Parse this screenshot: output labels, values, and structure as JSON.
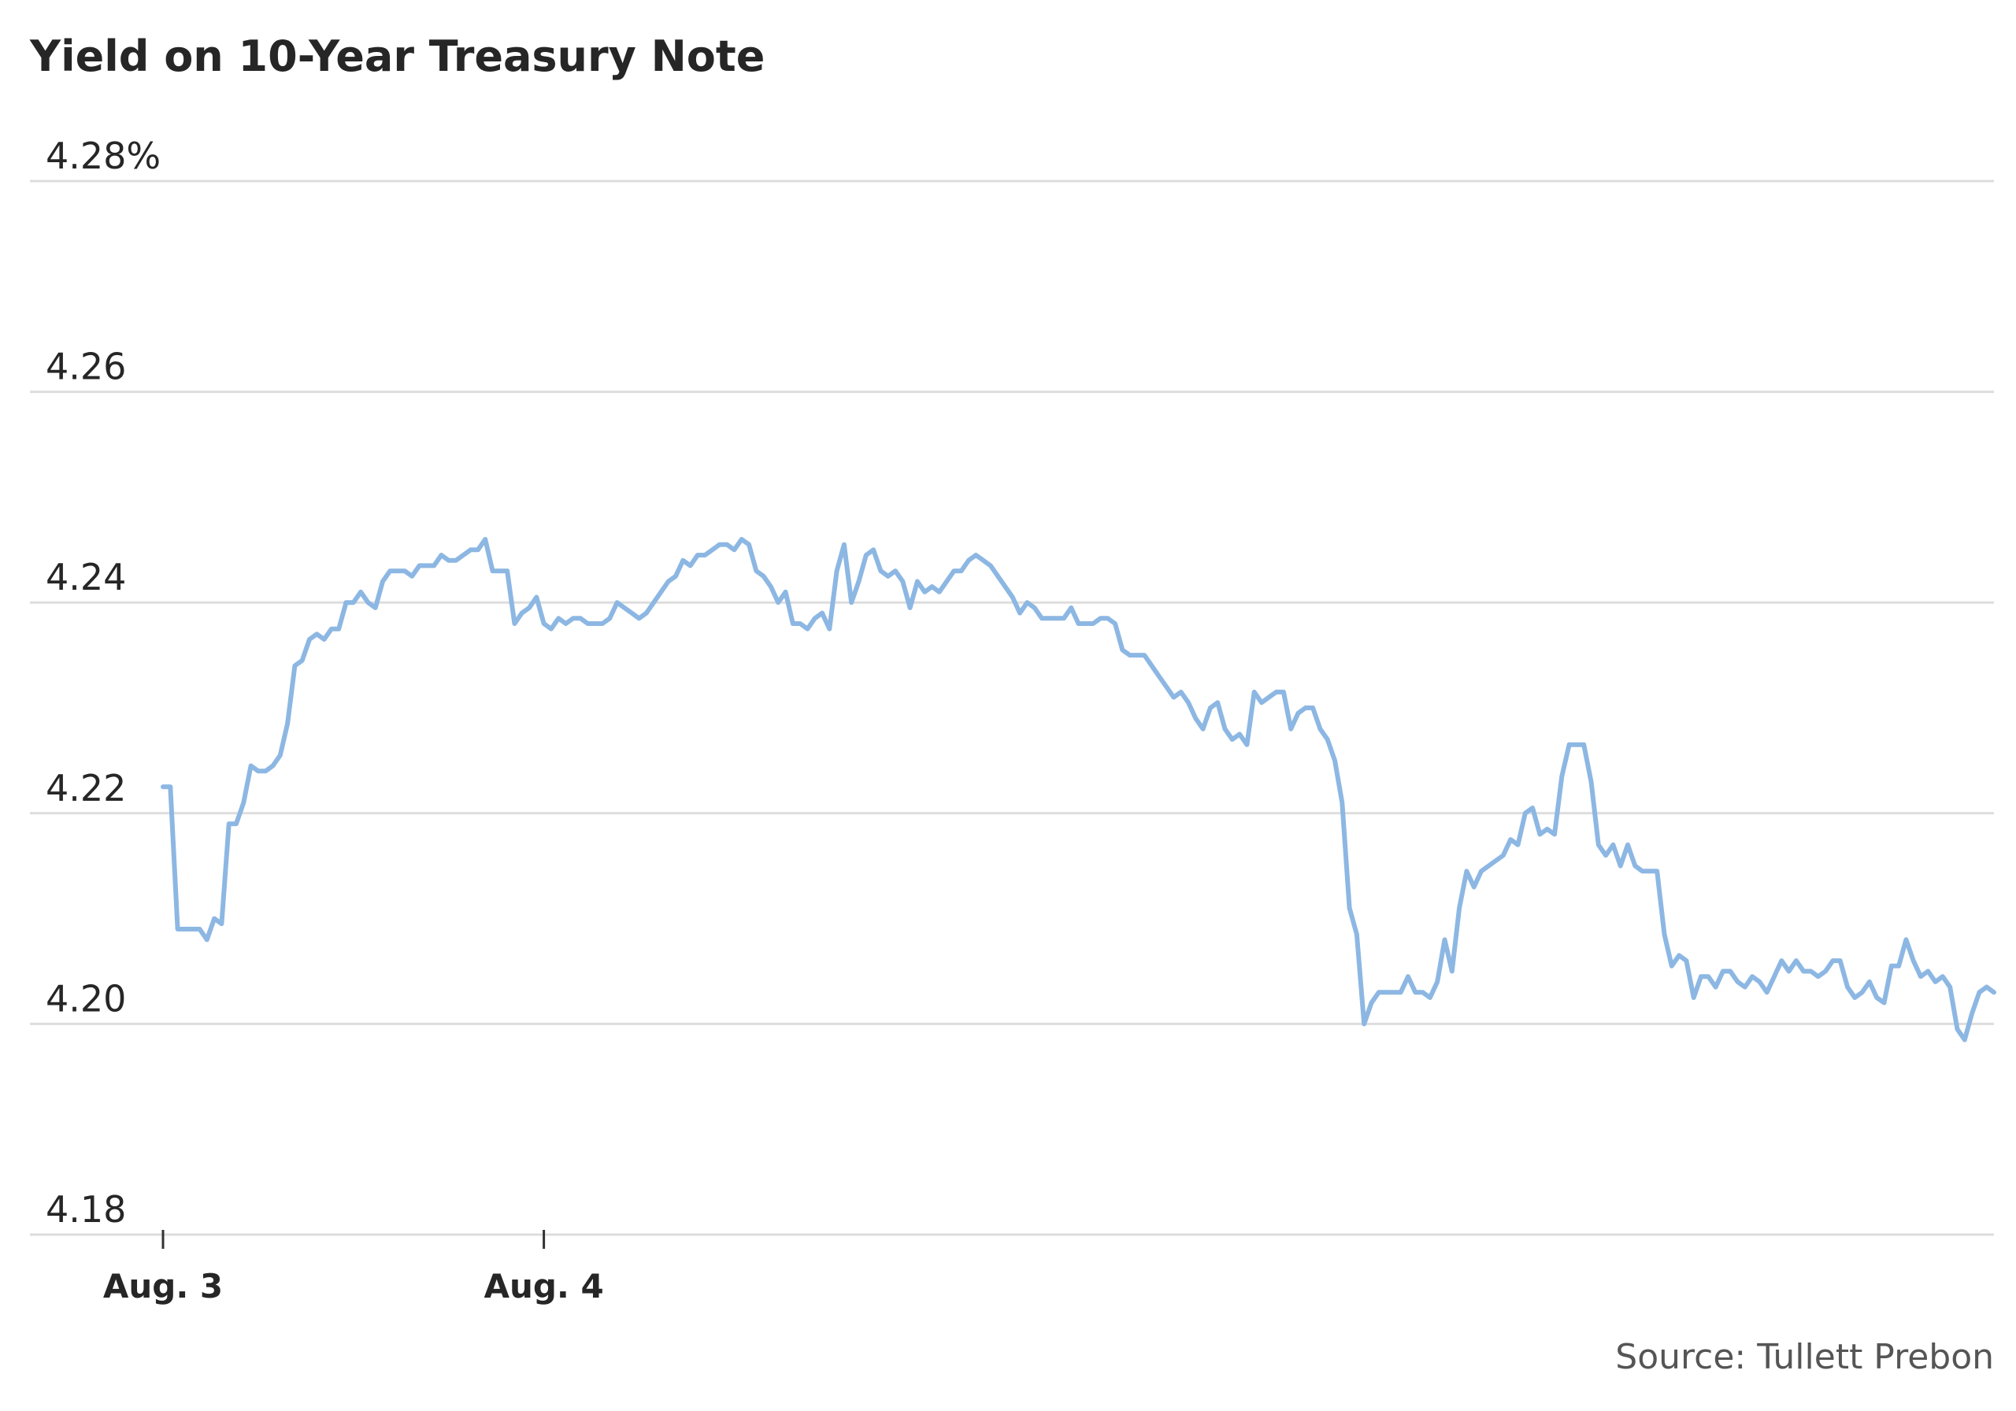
{
  "chart_data": {
    "type": "line",
    "title": "Yield on 10-Year Treasury Note",
    "source": "Source: Tullett Prebon",
    "xlabel": "",
    "ylabel": "",
    "ylim": [
      4.18,
      4.28
    ],
    "y_ticks": [
      {
        "value": 4.28,
        "label": "4.28%"
      },
      {
        "value": 4.26,
        "label": "4.26"
      },
      {
        "value": 4.24,
        "label": "4.24"
      },
      {
        "value": 4.22,
        "label": "4.22"
      },
      {
        "value": 4.2,
        "label": "4.20"
      },
      {
        "value": 4.18,
        "label": "4.18"
      }
    ],
    "x_ticks": [
      {
        "index": 0,
        "label": "Aug. 3"
      },
      {
        "index": 52,
        "label": "Aug. 4"
      }
    ],
    "grid": true,
    "legend": "none",
    "colors": {
      "line": "#8db7e3",
      "grid": "#dddddd",
      "text": "#262626",
      "source": "#555555",
      "axis": "#333333"
    },
    "series": [
      {
        "values": [
          4.2225,
          4.2225,
          4.209,
          4.209,
          4.209,
          4.209,
          4.208,
          4.21,
          4.2095,
          4.219,
          4.219,
          4.221,
          4.2245,
          4.224,
          4.224,
          4.2245,
          4.2255,
          4.2285,
          4.234,
          4.2345,
          4.2365,
          4.237,
          4.2365,
          4.2375,
          4.2375,
          4.24,
          4.24,
          4.241,
          4.24,
          4.2395,
          4.242,
          4.243,
          4.243,
          4.243,
          4.2425,
          4.2435,
          4.2435,
          4.2435,
          4.2445,
          4.244,
          4.244,
          4.2445,
          4.245,
          4.245,
          4.246,
          4.243,
          4.243,
          4.243,
          4.238,
          4.239,
          4.2395,
          4.2405,
          4.238,
          4.2375,
          4.2385,
          4.238,
          4.2385,
          4.2385,
          4.238,
          4.238,
          4.238,
          4.2385,
          4.24,
          4.2395,
          4.239,
          4.2385,
          4.239,
          4.24,
          4.241,
          4.242,
          4.2425,
          4.244,
          4.2435,
          4.2445,
          4.2445,
          4.245,
          4.2455,
          4.2455,
          4.245,
          4.246,
          4.2455,
          4.243,
          4.2425,
          4.2415,
          4.24,
          4.241,
          4.238,
          4.238,
          4.2375,
          4.2385,
          4.239,
          4.2375,
          4.243,
          4.2455,
          4.24,
          4.242,
          4.2445,
          4.245,
          4.243,
          4.2425,
          4.243,
          4.242,
          4.2395,
          4.242,
          4.241,
          4.2415,
          4.241,
          4.242,
          4.243,
          4.243,
          4.244,
          4.2445,
          4.244,
          4.2435,
          4.2425,
          4.2415,
          4.2405,
          4.239,
          4.24,
          4.2395,
          4.2385,
          4.2385,
          4.2385,
          4.2385,
          4.2395,
          4.238,
          4.238,
          4.238,
          4.2385,
          4.2385,
          4.238,
          4.2355,
          4.235,
          4.235,
          4.235,
          4.234,
          4.233,
          4.232,
          4.231,
          4.2315,
          4.2305,
          4.229,
          4.228,
          4.23,
          4.2305,
          4.228,
          4.227,
          4.2275,
          4.2265,
          4.2315,
          4.2305,
          4.231,
          4.2315,
          4.2315,
          4.228,
          4.2295,
          4.23,
          4.23,
          4.228,
          4.227,
          4.225,
          4.221,
          4.211,
          4.2085,
          4.2,
          4.202,
          4.203,
          4.203,
          4.203,
          4.203,
          4.2045,
          4.203,
          4.203,
          4.2025,
          4.204,
          4.208,
          4.205,
          4.211,
          4.2145,
          4.213,
          4.2145,
          4.215,
          4.2155,
          4.216,
          4.2175,
          4.217,
          4.22,
          4.2205,
          4.218,
          4.2185,
          4.218,
          4.2235,
          4.2265,
          4.2265,
          4.2265,
          4.223,
          4.217,
          4.216,
          4.217,
          4.215,
          4.217,
          4.215,
          4.2145,
          4.2145,
          4.2145,
          4.2085,
          4.2055,
          4.2065,
          4.206,
          4.2025,
          4.2045,
          4.2045,
          4.2035,
          4.205,
          4.205,
          4.204,
          4.2035,
          4.2045,
          4.204,
          4.203,
          4.2045,
          4.206,
          4.205,
          4.206,
          4.205,
          4.205,
          4.2045,
          4.205,
          4.206,
          4.206,
          4.2035,
          4.2025,
          4.203,
          4.204,
          4.2025,
          4.202,
          4.2055,
          4.2055,
          4.208,
          4.206,
          4.2045,
          4.205,
          4.204,
          4.2045,
          4.2035,
          4.1995,
          4.1985,
          4.201,
          4.203,
          4.2035,
          4.203
        ]
      }
    ]
  }
}
